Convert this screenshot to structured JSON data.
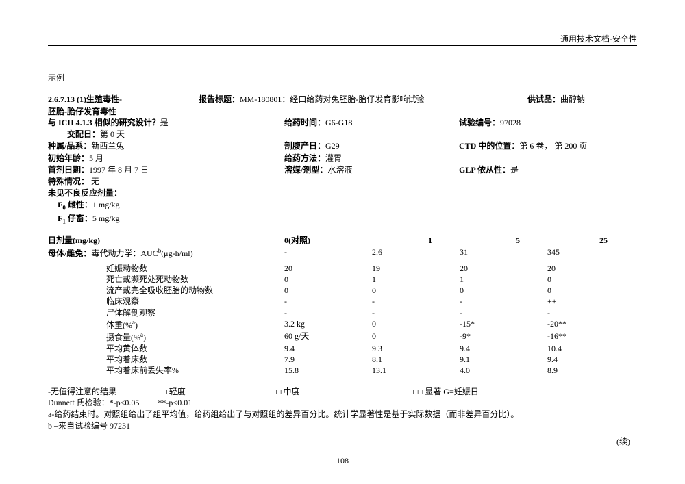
{
  "header": {
    "doc_type": "通用技术文档-安全性"
  },
  "example_label": "示例",
  "section": {
    "number": "2.6.7.13   (1)生殖毒性-",
    "subtitle": "胚胎-胎仔发育毒性",
    "report_label": "报告标题：",
    "report_value": "MM-180801：经口给药对兔胚胎-胎仔发育影响试验",
    "supply_label": "供试品：",
    "supply_value": "曲醇钠"
  },
  "meta": {
    "ich_q": " 与 ICH 4.1.3 相似的研究设计？",
    "ich_a": "是",
    "mating_label": "交配日：",
    "mating_value": "第 0 天",
    "dosing_time_label": "给药时间：",
    "dosing_time_value": "G6-G18",
    "study_no_label": "试验编号：",
    "study_no_value": "97028",
    "species_label": "种属/品系：",
    "species_value": "新西兰兔",
    "csection_label": "剖腹产日：",
    "csection_value": "G29",
    "ctd_label": "CTD 中的位置：",
    "ctd_value": "第 6 卷， 第 200 页",
    "age_label": "初始年龄：",
    "age_value": "5 月",
    "route_label": "给药方法：",
    "route_value": "灌胃",
    "firstdose_label": "首剂日期：",
    "firstdose_value": "1997 年 8 月 7 日",
    "vehicle_label": "溶媒/剂型：",
    "vehicle_value": "水溶液",
    "glp_label": "GLP 依从性：",
    "glp_value": "是",
    "special_label": "特殊情况：",
    "special_value": " 无",
    "noel_label": "未见不良反应剂量：",
    "f0_label": "F",
    "f0_sub": "0",
    "f0_sex": " 雌性：",
    "f0_val": "1 mg/kg",
    "f1_label": "F",
    "f1_sub": "1",
    "f1_sex": " 仔畜：",
    "f1_val": "5 mg/kg"
  },
  "table": {
    "dose_label": " 日剂量(mg/kg)",
    "doses": [
      "0(对照)",
      "1",
      "5",
      "25"
    ],
    "maternal_label": " 母体/雌兔：",
    "tk_label": "毒代动力学：AUC",
    "tk_sup": "b",
    "tk_unit": "(μg-h/ml)",
    "tk_vals": [
      "-",
      "2.6",
      "31",
      "345"
    ],
    "rows": [
      {
        "label": "妊娠动物数",
        "v": [
          "20",
          "19",
          "20",
          "20"
        ]
      },
      {
        "label": "死亡或濒死处死动物数",
        "v": [
          "0",
          "1",
          "1",
          "0"
        ]
      },
      {
        "label": "流产或完全吸收胚胎的动物数",
        "v": [
          "0",
          "0",
          "0",
          "0"
        ]
      },
      {
        "label": "临床观察",
        "v": [
          "-",
          "-",
          "-",
          "++"
        ]
      },
      {
        "label": "尸体解剖观察",
        "v": [
          "-",
          "-",
          "-",
          "-"
        ]
      },
      {
        "label_html": "体重(%<sup>a</sup>)",
        "label": "体重(%",
        "sup": "a",
        "suffix": ")",
        "v": [
          "3.2 kg",
          "0",
          "-15*",
          "-20**"
        ]
      },
      {
        "label": "摄食量(%",
        "sup": "a",
        "suffix": ")",
        "v": [
          "60 g/天",
          "0",
          "-9*",
          "-16**"
        ]
      },
      {
        "label": "平均黄体数",
        "v": [
          "9.4",
          "9.3",
          "9.4",
          "10.4"
        ]
      },
      {
        "label": "平均着床数",
        "v": [
          "7.9",
          "8.1",
          "9.1",
          "9.4"
        ]
      },
      {
        "label": "平均着床前丢失率%",
        "v": [
          "15.8",
          "13.1",
          "4.0",
          "8.9"
        ]
      }
    ]
  },
  "footnotes": {
    "legend_a": "-无值得注意的结果",
    "legend_b": "+轻度",
    "legend_c": "++中度",
    "legend_d": "+++显著 G=妊娠日",
    "dunnett": "Dunnett 氏检验：*-p<0.05         **-p<0.01",
    "note_a": "a-给药结束时。对照组给出了组平均值，给药组给出了与对照组的差异百分比。统计学显著性是基于实际数据（而非差异百分比）。",
    "note_b": "b –来自试验编号 97231",
    "continued": "(续)"
  },
  "page_number": "108"
}
